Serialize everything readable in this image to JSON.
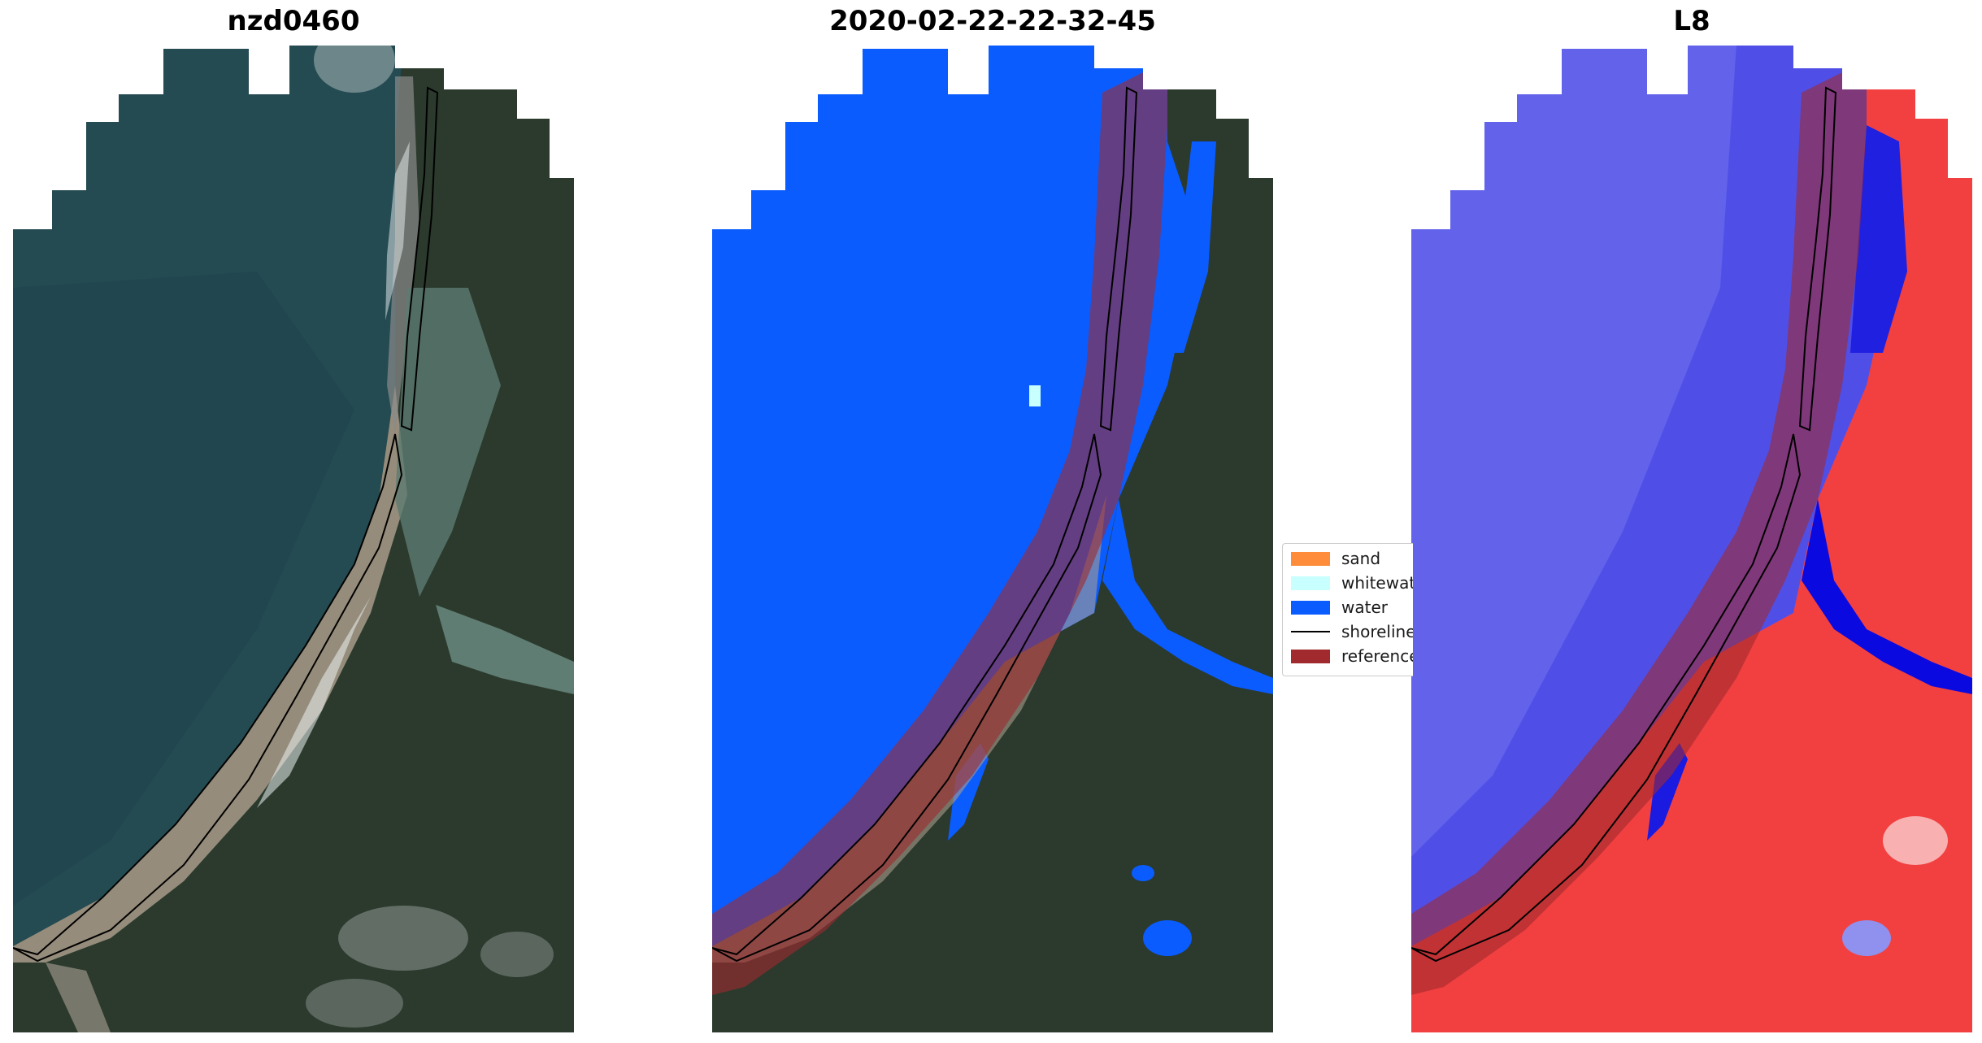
{
  "panels": [
    {
      "title": "nzd0460"
    },
    {
      "title": "2020-02-22-22-32-45"
    },
    {
      "title": "L8"
    }
  ],
  "legend": {
    "items": [
      {
        "label": "sand",
        "color": "#ff8c3a"
      },
      {
        "label": "whitewater",
        "color": "#c8ffff"
      },
      {
        "label": "water",
        "color": "#0a5cff"
      },
      {
        "label": "shoreline",
        "color": "#000000"
      },
      {
        "label": "reference shoreline buffer",
        "color": "#a02a2e"
      }
    ]
  },
  "colors": {
    "ocean_rgb": "#244a52",
    "land_rgb": "#2a3a2c",
    "sand_rgb": "#a89b8a",
    "water_class": "#0a5cff",
    "buffer": "#a02a2e",
    "index_water": "#3030e8",
    "index_land": "#f24040"
  }
}
